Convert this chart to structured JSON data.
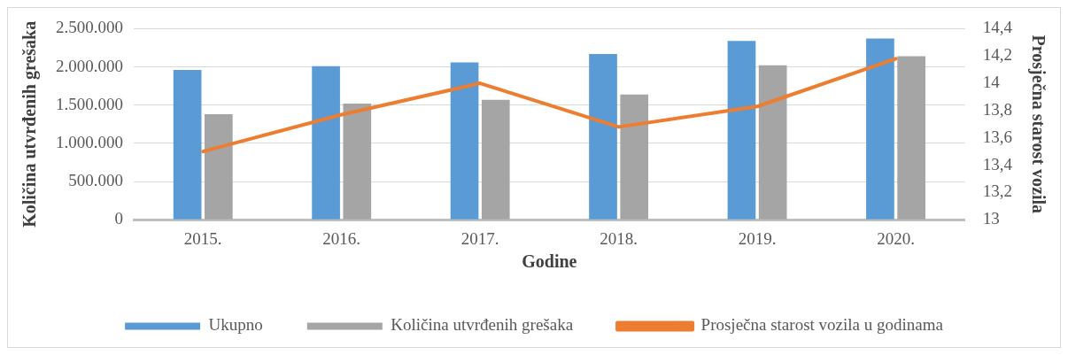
{
  "chart_data": {
    "type": "bar",
    "xlabel": "Godine",
    "ylabel": "Količina utvrđenih grešaka",
    "y2label": "Prosječna starost vozila",
    "categories": [
      "2015.",
      "2016.",
      "2017.",
      "2018.",
      "2019.",
      "2020."
    ],
    "series": [
      {
        "name": "Ukupno",
        "color": "#5b9bd5",
        "values": [
          1960000,
          2010000,
          2060000,
          2170000,
          2340000,
          2370000
        ]
      },
      {
        "name": "Količina utvrđenih grešaka",
        "color": "#a5a5a5",
        "values": [
          1380000,
          1520000,
          1570000,
          1640000,
          2020000,
          2140000
        ]
      },
      {
        "name": "Prosječna starost vozila u godinama",
        "type": "line",
        "axis": "y2",
        "color": "#ed7d31",
        "values": [
          13.5,
          13.77,
          14.0,
          13.68,
          13.83,
          14.18
        ]
      }
    ],
    "ylim": [
      0,
      2500000
    ],
    "yticks": [
      0,
      {
        "value": 500000,
        "label": "500.000"
      },
      {
        "value": 1000000,
        "label": "1.000.000"
      },
      {
        "value": 1500000,
        "label": "1.500.000"
      },
      {
        "value": 2000000,
        "label": "2.000.000"
      },
      {
        "value": 2500000,
        "label": "2.500.000"
      }
    ],
    "y2lim": [
      13,
      14.4
    ],
    "y2ticks": [
      13,
      {
        "value": 13.2,
        "label": "13,2"
      },
      {
        "value": 13.4,
        "label": "13,4"
      },
      {
        "value": 13.6,
        "label": "13,6"
      },
      {
        "value": 13.8,
        "label": "13,8"
      },
      14,
      {
        "value": 14.2,
        "label": "14,2"
      },
      {
        "value": 14.4,
        "label": "14,4"
      }
    ],
    "grid": "y",
    "legend": "bottom",
    "marker": "none",
    "line_style": "solid"
  }
}
